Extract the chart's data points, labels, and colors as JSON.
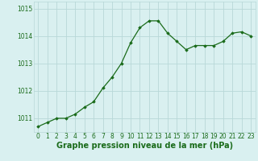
{
  "x": [
    0,
    1,
    2,
    3,
    4,
    5,
    6,
    7,
    8,
    9,
    10,
    11,
    12,
    13,
    14,
    15,
    16,
    17,
    18,
    19,
    20,
    21,
    22,
    23
  ],
  "y": [
    1010.7,
    1010.85,
    1011.0,
    1011.0,
    1011.15,
    1011.4,
    1011.6,
    1012.1,
    1012.5,
    1013.0,
    1013.75,
    1014.3,
    1014.55,
    1014.55,
    1014.1,
    1013.8,
    1013.5,
    1013.65,
    1013.65,
    1013.65,
    1013.8,
    1014.1,
    1014.15,
    1014.0
  ],
  "line_color": "#1a6b1a",
  "marker_color": "#1a6b1a",
  "bg_color": "#d9f0f0",
  "grid_color": "#b8d8d8",
  "xlabel": "Graphe pression niveau de la mer (hPa)",
  "xlabel_color": "#1a6b1a",
  "tick_color": "#1a6b1a",
  "ylim": [
    1010.5,
    1015.25
  ],
  "yticks": [
    1011,
    1012,
    1013,
    1014,
    1015
  ],
  "xticks": [
    0,
    1,
    2,
    3,
    4,
    5,
    6,
    7,
    8,
    9,
    10,
    11,
    12,
    13,
    14,
    15,
    16,
    17,
    18,
    19,
    20,
    21,
    22,
    23
  ],
  "font_size": 5.5,
  "xlabel_fontsize": 7.0,
  "figsize": [
    3.2,
    2.0
  ],
  "dpi": 100
}
